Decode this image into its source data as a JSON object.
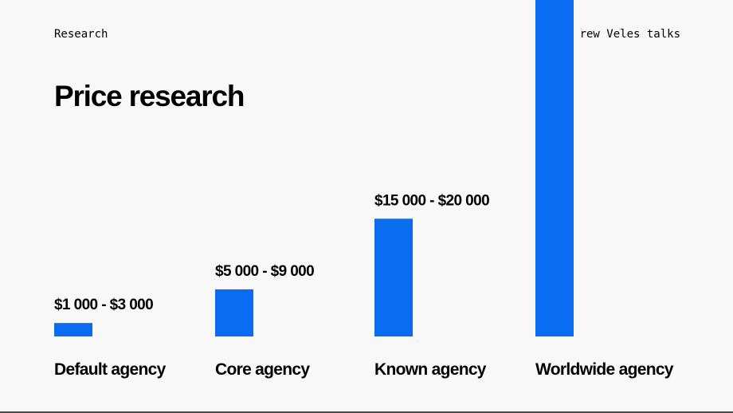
{
  "header": {
    "section_label": "Research",
    "author_label": "rew Veles talks"
  },
  "chart_data": {
    "type": "bar",
    "title": "Price research",
    "categories": [
      "Default agency",
      "Core agency",
      "Known agency",
      "Worldwide agency"
    ],
    "value_labels": [
      "$1 000 - $3 000",
      "$5 000 - $9 000",
      "$15 000 - $20 000",
      ""
    ],
    "values": [
      2000,
      7000,
      17500,
      50000
    ],
    "ylim": [
      0,
      50000
    ],
    "grid": false,
    "legend": "none",
    "bar_color": "#0a6cf0"
  }
}
